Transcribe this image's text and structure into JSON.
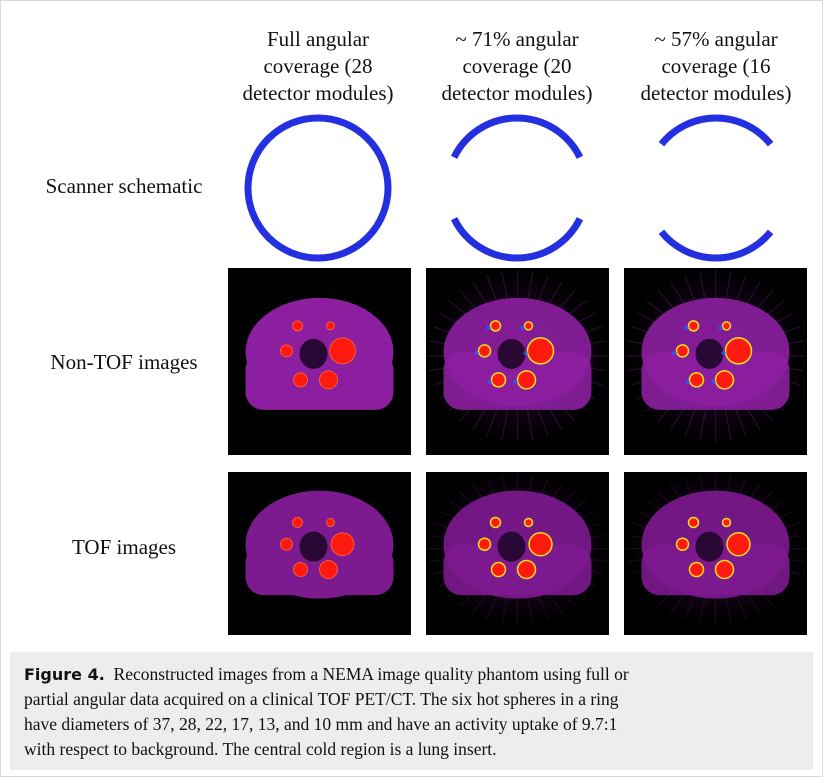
{
  "figure": {
    "columns": [
      {
        "lines": [
          "Full angular",
          "coverage (28",
          "detector modules)"
        ]
      },
      {
        "lines": [
          "~ 71% angular",
          "coverage (20",
          "detector modules)"
        ]
      },
      {
        "lines": [
          "~ 57% angular",
          "coverage (16",
          "detector modules)"
        ]
      }
    ],
    "rows": [
      "Scanner schematic",
      "Non-TOF images",
      "TOF images"
    ],
    "caption": {
      "label": "Figure 4.",
      "lines": [
        "Reconstructed images from a NEMA image quality phantom using full or",
        "partial angular data acquired on a clinical TOF PET/CT. The six hot spheres in a ring",
        "have diameters of 37, 28, 22, 17, 13, and 10 mm and have an activity uptake of 9.7:1",
        "with respect to background. The central cold region is a lung insert."
      ]
    }
  }
}
